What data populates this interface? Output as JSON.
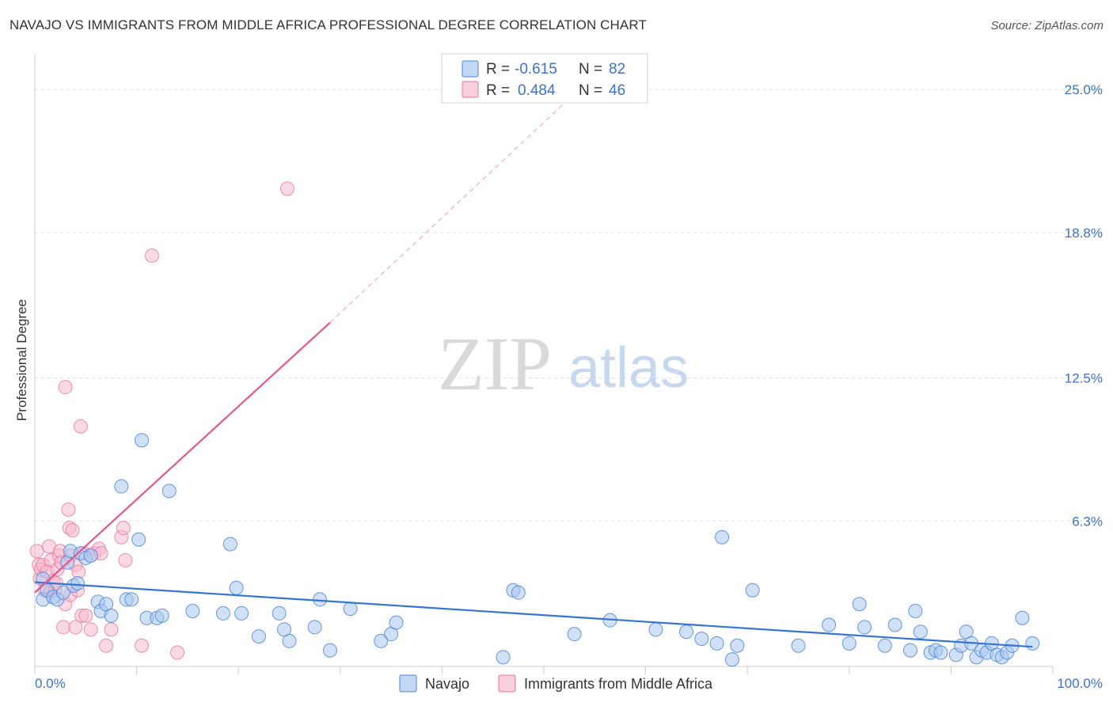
{
  "title": "NAVAJO VS IMMIGRANTS FROM MIDDLE AFRICA PROFESSIONAL DEGREE CORRELATION CHART",
  "source": "Source: ZipAtlas.com",
  "watermark": {
    "zip": "ZIP",
    "atlas": "atlas"
  },
  "colors": {
    "navajo_fill": "#a9c8f0",
    "navajo_stroke": "#4d86d6",
    "navajo_line": "#3674d1",
    "africa_fill": "#f7b9ce",
    "africa_stroke": "#e8769c",
    "africa_line": "#e2588a",
    "tick": "#3f72c5"
  },
  "legend": {
    "rows": [
      {
        "r_label": "R =",
        "r_value": "-0.615",
        "n_label": "N =",
        "n_value": "82"
      },
      {
        "r_label": "R =",
        "r_value": "0.484",
        "n_label": "N =",
        "n_value": "46"
      }
    ]
  },
  "bottom_legend": [
    "Navajo",
    "Immigrants from Middle Africa"
  ],
  "chart_data": {
    "type": "scatter",
    "title": "NAVAJO VS IMMIGRANTS FROM MIDDLE AFRICA PROFESSIONAL DEGREE CORRELATION CHART",
    "xlabel": "",
    "ylabel": "Professional Degree",
    "xlim": [
      0,
      100
    ],
    "ylim": [
      0,
      26.2
    ],
    "x_tick_labels": [
      "0.0%",
      "100.0%"
    ],
    "y_ticks": [
      6.3,
      12.5,
      18.8,
      25.0
    ],
    "y_tick_labels": [
      "6.3%",
      "12.5%",
      "18.8%",
      "25.0%"
    ],
    "grid": true,
    "series": [
      {
        "name": "Navajo",
        "points": [
          [
            0.8,
            3.8
          ],
          [
            0.8,
            2.9
          ],
          [
            1.2,
            3.3
          ],
          [
            1.8,
            3.0
          ],
          [
            2.2,
            2.9
          ],
          [
            2.8,
            3.2
          ],
          [
            3.2,
            4.5
          ],
          [
            3.5,
            5.0
          ],
          [
            3.8,
            3.5
          ],
          [
            4.2,
            3.6
          ],
          [
            4.5,
            4.9
          ],
          [
            5.0,
            4.7
          ],
          [
            5.5,
            4.8
          ],
          [
            6.2,
            2.8
          ],
          [
            6.5,
            2.4
          ],
          [
            7.0,
            2.7
          ],
          [
            7.5,
            2.2
          ],
          [
            8.5,
            7.8
          ],
          [
            9.0,
            2.9
          ],
          [
            9.5,
            2.9
          ],
          [
            10.2,
            5.5
          ],
          [
            10.5,
            9.8
          ],
          [
            11.0,
            2.1
          ],
          [
            12.0,
            2.1
          ],
          [
            12.5,
            2.2
          ],
          [
            13.2,
            7.6
          ],
          [
            15.5,
            2.4
          ],
          [
            18.5,
            2.3
          ],
          [
            19.2,
            5.3
          ],
          [
            19.8,
            3.4
          ],
          [
            20.3,
            2.3
          ],
          [
            22.0,
            1.3
          ],
          [
            24.0,
            2.3
          ],
          [
            24.5,
            1.6
          ],
          [
            25.0,
            1.1
          ],
          [
            27.5,
            1.7
          ],
          [
            28.0,
            2.9
          ],
          [
            29.0,
            0.7
          ],
          [
            31.0,
            2.5
          ],
          [
            34.0,
            1.1
          ],
          [
            35.0,
            1.4
          ],
          [
            35.5,
            1.9
          ],
          [
            46.0,
            0.4
          ],
          [
            47.0,
            3.3
          ],
          [
            47.5,
            3.2
          ],
          [
            53.0,
            1.4
          ],
          [
            56.5,
            2.0
          ],
          [
            61.0,
            1.6
          ],
          [
            64.0,
            1.5
          ],
          [
            65.5,
            1.2
          ],
          [
            67.0,
            1.0
          ],
          [
            67.5,
            5.6
          ],
          [
            68.5,
            0.3
          ],
          [
            69.0,
            0.9
          ],
          [
            70.5,
            3.3
          ],
          [
            75.0,
            0.9
          ],
          [
            78.0,
            1.8
          ],
          [
            80.0,
            1.0
          ],
          [
            81.0,
            2.7
          ],
          [
            81.5,
            1.7
          ],
          [
            83.5,
            0.9
          ],
          [
            84.5,
            1.8
          ],
          [
            86.0,
            0.7
          ],
          [
            86.5,
            2.4
          ],
          [
            87.0,
            1.5
          ],
          [
            88.0,
            0.6
          ],
          [
            88.5,
            0.7
          ],
          [
            89.0,
            0.6
          ],
          [
            90.5,
            0.5
          ],
          [
            91.0,
            0.9
          ],
          [
            91.5,
            1.5
          ],
          [
            92.0,
            1.0
          ],
          [
            92.5,
            0.4
          ],
          [
            93.0,
            0.7
          ],
          [
            93.5,
            0.6
          ],
          [
            94.0,
            1.0
          ],
          [
            94.5,
            0.5
          ],
          [
            95.0,
            0.4
          ],
          [
            95.5,
            0.6
          ],
          [
            96.0,
            0.9
          ],
          [
            97.0,
            2.1
          ],
          [
            98.0,
            1.0
          ]
        ],
        "trend": {
          "x": [
            0,
            98
          ],
          "y": [
            3.65,
            0.85
          ],
          "style": "solid"
        }
      },
      {
        "name": "Immigrants from Middle Africa",
        "points": [
          [
            0.2,
            5.0
          ],
          [
            0.4,
            4.4
          ],
          [
            0.5,
            3.8
          ],
          [
            0.6,
            4.2
          ],
          [
            0.8,
            4.4
          ],
          [
            1.0,
            3.3
          ],
          [
            1.2,
            4.1
          ],
          [
            1.4,
            5.2
          ],
          [
            1.5,
            3.2
          ],
          [
            1.6,
            4.6
          ],
          [
            1.8,
            3.7
          ],
          [
            2.0,
            3.3
          ],
          [
            2.2,
            4.2
          ],
          [
            2.4,
            4.8
          ],
          [
            2.5,
            5.0
          ],
          [
            2.6,
            4.5
          ],
          [
            2.8,
            1.7
          ],
          [
            3.0,
            2.7
          ],
          [
            3.0,
            12.1
          ],
          [
            3.3,
            6.8
          ],
          [
            3.4,
            6.0
          ],
          [
            3.5,
            4.8
          ],
          [
            3.5,
            3.1
          ],
          [
            3.7,
            5.9
          ],
          [
            4.0,
            4.4
          ],
          [
            4.0,
            1.7
          ],
          [
            4.2,
            3.3
          ],
          [
            4.5,
            10.4
          ],
          [
            4.6,
            2.2
          ],
          [
            4.8,
            4.9
          ],
          [
            5.0,
            2.2
          ],
          [
            5.5,
            1.6
          ],
          [
            5.8,
            4.9
          ],
          [
            6.3,
            5.1
          ],
          [
            6.5,
            4.9
          ],
          [
            7.0,
            0.9
          ],
          [
            7.5,
            1.6
          ],
          [
            8.5,
            5.6
          ],
          [
            8.7,
            6.0
          ],
          [
            8.9,
            4.6
          ],
          [
            10.5,
            0.9
          ],
          [
            11.5,
            17.8
          ],
          [
            14.0,
            0.6
          ],
          [
            24.8,
            20.7
          ],
          [
            4.3,
            4.1
          ],
          [
            2.1,
            3.6
          ]
        ],
        "trend_solid": {
          "x": [
            0,
            29
          ],
          "y": [
            3.2,
            14.9
          ]
        },
        "trend_dashed": {
          "x": [
            29,
            52
          ],
          "y": [
            14.9,
            24.4
          ]
        }
      }
    ]
  }
}
